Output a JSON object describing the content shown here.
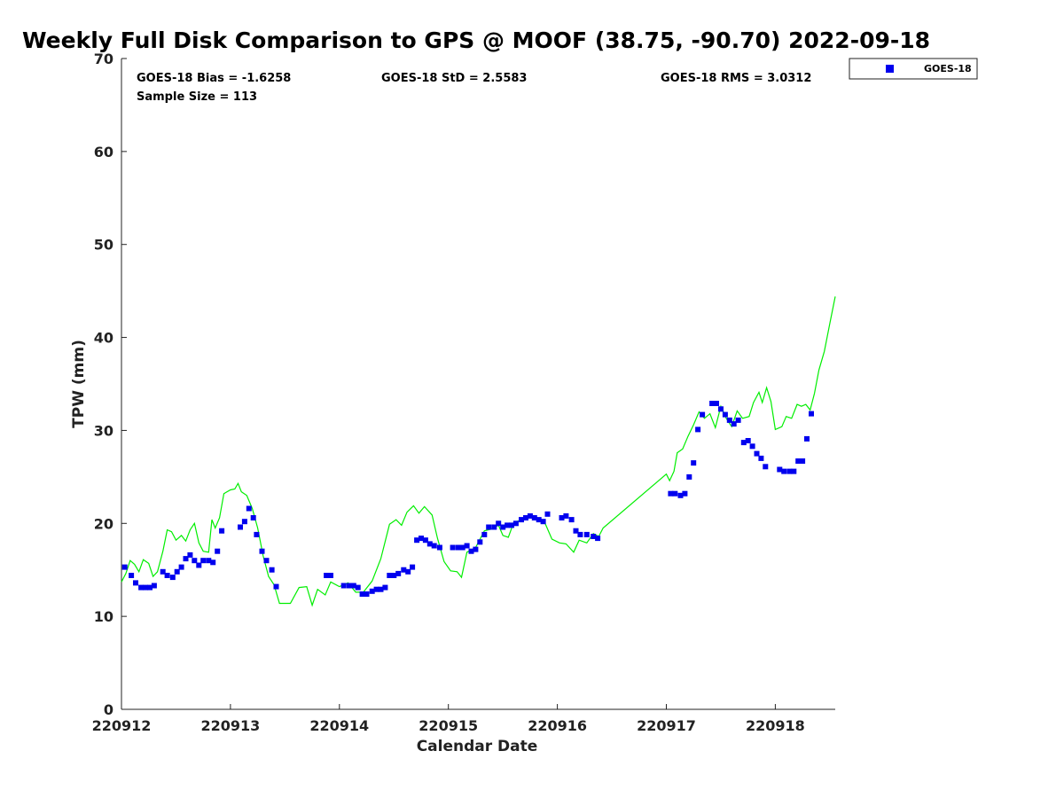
{
  "chart_data": {
    "type": "scatter",
    "title": "Weekly Full Disk Comparison to GPS @ MOOF (38.75, -90.70) 2022-09-18",
    "xlabel": "Calendar Date",
    "ylabel": "TPW (mm)",
    "xlim": [
      0,
      6.55
    ],
    "ylim": [
      0,
      70
    ],
    "x_ticks": [
      0,
      1,
      2,
      3,
      4,
      5,
      6
    ],
    "x_tick_labels": [
      "220912",
      "220913",
      "220914",
      "220915",
      "220916",
      "220917",
      "220918"
    ],
    "y_ticks": [
      0,
      10,
      20,
      30,
      40,
      50,
      60,
      70
    ],
    "y_tick_labels": [
      "0",
      "10",
      "20",
      "30",
      "40",
      "50",
      "60",
      "70"
    ],
    "stats": {
      "bias": "GOES-18 Bias = -1.6258",
      "std": "GOES-18 StD = 2.5583",
      "rms": "GOES-18 RMS = 3.0312",
      "sample": "Sample Size = 113"
    },
    "legend": {
      "position": "top-right",
      "entries": [
        "GOES-18"
      ]
    },
    "series": [
      {
        "name": "GOES-18",
        "style": "square-marker",
        "color": "#0000ee",
        "points": [
          [
            0.03,
            15.3
          ],
          [
            0.09,
            14.4
          ],
          [
            0.13,
            13.6
          ],
          [
            0.18,
            13.1
          ],
          [
            0.22,
            13.1
          ],
          [
            0.26,
            13.1
          ],
          [
            0.3,
            13.3
          ],
          [
            0.38,
            14.8
          ],
          [
            0.42,
            14.4
          ],
          [
            0.47,
            14.2
          ],
          [
            0.51,
            14.8
          ],
          [
            0.55,
            15.3
          ],
          [
            0.59,
            16.2
          ],
          [
            0.63,
            16.6
          ],
          [
            0.67,
            16.0
          ],
          [
            0.71,
            15.5
          ],
          [
            0.75,
            16.0
          ],
          [
            0.8,
            16.0
          ],
          [
            0.84,
            15.8
          ],
          [
            0.88,
            17.0
          ],
          [
            0.92,
            19.2
          ],
          [
            1.09,
            19.6
          ],
          [
            1.13,
            20.2
          ],
          [
            1.17,
            21.6
          ],
          [
            1.21,
            20.6
          ],
          [
            1.24,
            18.8
          ],
          [
            1.29,
            17.0
          ],
          [
            1.33,
            16.0
          ],
          [
            1.38,
            15.0
          ],
          [
            1.42,
            13.2
          ],
          [
            1.88,
            14.4
          ],
          [
            1.92,
            14.4
          ],
          [
            2.04,
            13.3
          ],
          [
            2.09,
            13.3
          ],
          [
            2.13,
            13.3
          ],
          [
            2.17,
            13.1
          ],
          [
            2.21,
            12.4
          ],
          [
            2.25,
            12.4
          ],
          [
            2.3,
            12.7
          ],
          [
            2.34,
            12.9
          ],
          [
            2.38,
            12.9
          ],
          [
            2.42,
            13.1
          ],
          [
            2.46,
            14.4
          ],
          [
            2.5,
            14.4
          ],
          [
            2.54,
            14.6
          ],
          [
            2.59,
            15.0
          ],
          [
            2.63,
            14.8
          ],
          [
            2.67,
            15.3
          ],
          [
            2.71,
            18.2
          ],
          [
            2.75,
            18.4
          ],
          [
            2.79,
            18.2
          ],
          [
            2.83,
            17.8
          ],
          [
            2.87,
            17.6
          ],
          [
            2.92,
            17.4
          ],
          [
            3.04,
            17.4
          ],
          [
            3.09,
            17.4
          ],
          [
            3.13,
            17.4
          ],
          [
            3.17,
            17.6
          ],
          [
            3.21,
            17.0
          ],
          [
            3.25,
            17.2
          ],
          [
            3.29,
            18.0
          ],
          [
            3.33,
            18.8
          ],
          [
            3.37,
            19.6
          ],
          [
            3.42,
            19.6
          ],
          [
            3.46,
            20.0
          ],
          [
            3.5,
            19.6
          ],
          [
            3.54,
            19.8
          ],
          [
            3.58,
            19.8
          ],
          [
            3.62,
            20.0
          ],
          [
            3.67,
            20.4
          ],
          [
            3.71,
            20.6
          ],
          [
            3.75,
            20.8
          ],
          [
            3.79,
            20.6
          ],
          [
            3.83,
            20.4
          ],
          [
            3.87,
            20.2
          ],
          [
            3.91,
            21.0
          ],
          [
            4.04,
            20.6
          ],
          [
            4.08,
            20.8
          ],
          [
            4.13,
            20.4
          ],
          [
            4.17,
            19.2
          ],
          [
            4.21,
            18.8
          ],
          [
            4.27,
            18.8
          ],
          [
            4.33,
            18.6
          ],
          [
            4.37,
            18.4
          ],
          [
            5.04,
            23.2
          ],
          [
            5.08,
            23.2
          ],
          [
            5.13,
            23.0
          ],
          [
            5.17,
            23.2
          ],
          [
            5.21,
            25.0
          ],
          [
            5.25,
            26.5
          ],
          [
            5.29,
            30.1
          ],
          [
            5.33,
            31.7
          ],
          [
            5.42,
            32.9
          ],
          [
            5.46,
            32.9
          ],
          [
            5.5,
            32.3
          ],
          [
            5.54,
            31.7
          ],
          [
            5.58,
            31.1
          ],
          [
            5.62,
            30.7
          ],
          [
            5.66,
            31.1
          ],
          [
            5.71,
            28.7
          ],
          [
            5.75,
            28.9
          ],
          [
            5.79,
            28.3
          ],
          [
            5.83,
            27.5
          ],
          [
            5.87,
            27.0
          ],
          [
            5.91,
            26.1
          ],
          [
            6.04,
            25.8
          ],
          [
            6.08,
            25.6
          ],
          [
            6.13,
            25.6
          ],
          [
            6.17,
            25.6
          ],
          [
            6.21,
            26.7
          ],
          [
            6.25,
            26.7
          ],
          [
            6.29,
            29.1
          ],
          [
            6.33,
            31.8
          ]
        ]
      },
      {
        "name": "GPS",
        "style": "line",
        "color": "#00ee00",
        "points": [
          [
            0.0,
            13.7
          ],
          [
            0.04,
            14.6
          ],
          [
            0.08,
            16.0
          ],
          [
            0.12,
            15.6
          ],
          [
            0.16,
            14.8
          ],
          [
            0.2,
            16.1
          ],
          [
            0.25,
            15.7
          ],
          [
            0.29,
            14.3
          ],
          [
            0.33,
            14.8
          ],
          [
            0.38,
            17.0
          ],
          [
            0.42,
            19.3
          ],
          [
            0.46,
            19.1
          ],
          [
            0.5,
            18.2
          ],
          [
            0.55,
            18.7
          ],
          [
            0.59,
            18.1
          ],
          [
            0.63,
            19.3
          ],
          [
            0.67,
            20.0
          ],
          [
            0.71,
            17.9
          ],
          [
            0.75,
            17.0
          ],
          [
            0.8,
            16.9
          ],
          [
            0.83,
            20.4
          ],
          [
            0.86,
            19.5
          ],
          [
            0.9,
            20.6
          ],
          [
            0.94,
            23.2
          ],
          [
            1.0,
            23.6
          ],
          [
            1.04,
            23.7
          ],
          [
            1.07,
            24.3
          ],
          [
            1.1,
            23.4
          ],
          [
            1.15,
            23.0
          ],
          [
            1.2,
            21.6
          ],
          [
            1.25,
            19.5
          ],
          [
            1.3,
            16.5
          ],
          [
            1.35,
            14.3
          ],
          [
            1.4,
            13.4
          ],
          [
            1.45,
            11.4
          ],
          [
            1.55,
            11.4
          ],
          [
            1.63,
            13.1
          ],
          [
            1.7,
            13.2
          ],
          [
            1.75,
            11.2
          ],
          [
            1.8,
            12.9
          ],
          [
            1.87,
            12.3
          ],
          [
            1.92,
            13.7
          ],
          [
            2.0,
            13.2
          ],
          [
            2.08,
            13.6
          ],
          [
            2.15,
            12.6
          ],
          [
            2.22,
            12.6
          ],
          [
            2.3,
            13.8
          ],
          [
            2.38,
            16.2
          ],
          [
            2.46,
            19.9
          ],
          [
            2.52,
            20.4
          ],
          [
            2.57,
            19.8
          ],
          [
            2.62,
            21.2
          ],
          [
            2.68,
            21.9
          ],
          [
            2.73,
            21.1
          ],
          [
            2.78,
            21.8
          ],
          [
            2.85,
            20.9
          ],
          [
            2.9,
            18.4
          ],
          [
            2.96,
            15.9
          ],
          [
            3.02,
            14.9
          ],
          [
            3.08,
            14.8
          ],
          [
            3.12,
            14.2
          ],
          [
            3.17,
            16.9
          ],
          [
            3.25,
            17.4
          ],
          [
            3.33,
            19.2
          ],
          [
            3.4,
            19.4
          ],
          [
            3.46,
            19.8
          ],
          [
            3.5,
            18.7
          ],
          [
            3.55,
            18.5
          ],
          [
            3.6,
            20.1
          ],
          [
            3.68,
            20.4
          ],
          [
            3.75,
            20.9
          ],
          [
            3.82,
            20.6
          ],
          [
            3.88,
            20.2
          ],
          [
            3.95,
            18.3
          ],
          [
            4.02,
            17.9
          ],
          [
            4.08,
            17.8
          ],
          [
            4.15,
            16.9
          ],
          [
            4.2,
            18.2
          ],
          [
            4.27,
            17.9
          ],
          [
            4.33,
            18.9
          ],
          [
            4.38,
            18.6
          ],
          [
            4.42,
            19.5
          ],
          [
            5.0,
            25.3
          ],
          [
            5.03,
            24.6
          ],
          [
            5.07,
            25.6
          ],
          [
            5.1,
            27.6
          ],
          [
            5.15,
            28.0
          ],
          [
            5.2,
            29.4
          ],
          [
            5.25,
            30.6
          ],
          [
            5.3,
            32.0
          ],
          [
            5.35,
            31.3
          ],
          [
            5.4,
            31.8
          ],
          [
            5.45,
            30.3
          ],
          [
            5.5,
            32.6
          ],
          [
            5.55,
            31.3
          ],
          [
            5.6,
            30.4
          ],
          [
            5.65,
            32.1
          ],
          [
            5.7,
            31.3
          ],
          [
            5.76,
            31.5
          ],
          [
            5.8,
            33.0
          ],
          [
            5.85,
            34.1
          ],
          [
            5.88,
            33.0
          ],
          [
            5.92,
            34.6
          ],
          [
            5.96,
            33.1
          ],
          [
            6.0,
            30.1
          ],
          [
            6.06,
            30.4
          ],
          [
            6.1,
            31.5
          ],
          [
            6.15,
            31.3
          ],
          [
            6.2,
            32.8
          ],
          [
            6.24,
            32.6
          ],
          [
            6.28,
            32.8
          ],
          [
            6.32,
            32.2
          ],
          [
            6.36,
            34.0
          ],
          [
            6.4,
            36.5
          ],
          [
            6.45,
            38.5
          ],
          [
            6.5,
            41.5
          ],
          [
            6.55,
            44.4
          ]
        ]
      }
    ]
  }
}
